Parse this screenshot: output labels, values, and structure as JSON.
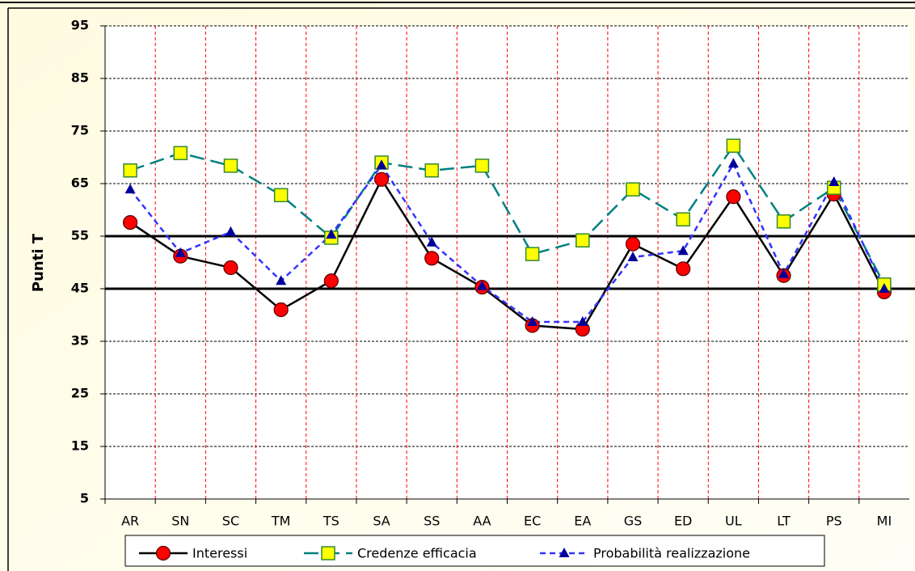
{
  "chart_data": {
    "type": "line",
    "ylabel": "Punti T",
    "categories": [
      "AR",
      "SN",
      "SC",
      "TM",
      "TS",
      "SA",
      "SS",
      "AA",
      "EC",
      "EA",
      "GS",
      "ED",
      "UL",
      "LT",
      "PS",
      "MI"
    ],
    "series": [
      {
        "name": "Interessi",
        "color": "#000000",
        "marker": "circle",
        "marker_color": "#ff0000",
        "dash": "none",
        "values": [
          57.6,
          51.2,
          49,
          41,
          46.5,
          65.8,
          50.8,
          45.3,
          38,
          37.3,
          53.5,
          48.8,
          62.5,
          47.5,
          63,
          44.4
        ]
      },
      {
        "name": "Credenze efficacia",
        "color": "#008080",
        "marker": "square",
        "marker_color": "#ffff00",
        "dash": "long",
        "values": [
          67.5,
          70.8,
          68.4,
          62.8,
          54.7,
          69,
          67.5,
          68.4,
          51.6,
          54.2,
          63.9,
          58.2,
          72.2,
          57.8,
          64.2,
          45.8
        ]
      },
      {
        "name": "Probabilità realizzazione",
        "color": "#3333ff",
        "marker": "triangle",
        "marker_color": "#000099",
        "dash": "short",
        "values": [
          63.9,
          51.8,
          55.8,
          46.5,
          55.3,
          68.5,
          53.8,
          45.5,
          38.7,
          38.7,
          51,
          52.2,
          68.8,
          47.8,
          65.3,
          45
        ]
      }
    ],
    "ylim": [
      5,
      95
    ],
    "yticks": [
      5,
      15,
      25,
      35,
      45,
      55,
      65,
      75,
      85,
      95
    ],
    "reference_lines": [
      45,
      55
    ],
    "grid": true,
    "legend": "bottom"
  }
}
